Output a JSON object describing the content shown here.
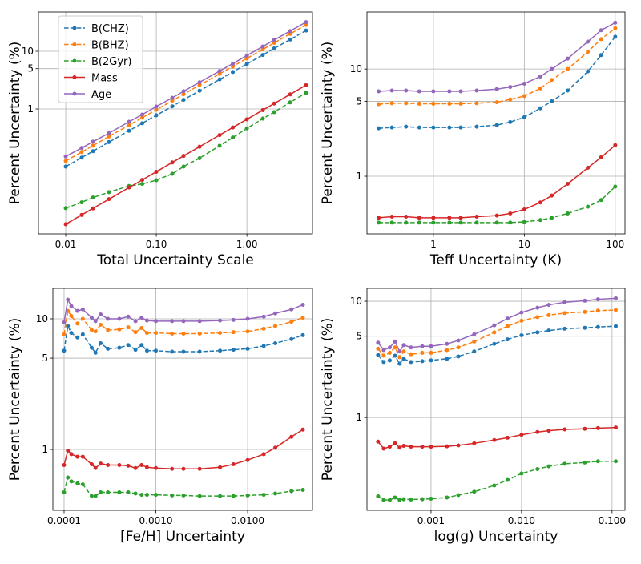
{
  "chart_data": [
    {
      "type": "line",
      "xlabel": "Total Uncertainty Scale",
      "ylabel": "Percent Uncertainty (%)",
      "xscale": "log",
      "yscale": "log",
      "grid": true,
      "legend": "upper left",
      "xlim": [
        0.005,
        5.3
      ],
      "ylim": [
        0.0068,
        48
      ],
      "xticks": [
        0.01,
        {
          "value": 0.1,
          "label": "0.10"
        },
        {
          "value": 1,
          "label": "1.00"
        }
      ],
      "yticks": [
        1,
        5,
        10
      ],
      "x": [
        0.01,
        0.015,
        0.02,
        0.03,
        0.05,
        0.07,
        0.1,
        0.15,
        0.2,
        0.3,
        0.5,
        0.7,
        1,
        1.5,
        2,
        3,
        4.5
      ],
      "series": [
        {
          "name": "B(CHZ)",
          "color": "#1f77b4",
          "linestyle": "dashed",
          "values": [
            0.1,
            0.143,
            0.185,
            0.266,
            0.419,
            0.565,
            0.776,
            1.11,
            1.44,
            2.07,
            3.25,
            4.38,
            6.03,
            8.65,
            11.2,
            16.0,
            22.9
          ]
        },
        {
          "name": "B(BHZ)",
          "color": "#ff7f0e",
          "linestyle": "dashed",
          "values": [
            0.125,
            0.179,
            0.231,
            0.333,
            0.524,
            0.706,
            0.97,
            1.39,
            1.8,
            2.59,
            4.06,
            5.48,
            7.54,
            10.8,
            14.0,
            20.0,
            28.6
          ]
        },
        {
          "name": "B(2Gyr)",
          "color": "#2ca02c",
          "linestyle": "dashed",
          "values": [
            0.019,
            0.024,
            0.029,
            0.036,
            0.046,
            0.05,
            0.058,
            0.075,
            0.1,
            0.14,
            0.23,
            0.32,
            0.46,
            0.68,
            0.88,
            1.3,
            1.9
          ]
        },
        {
          "name": "Mass",
          "color": "#d62728",
          "linestyle": "solid",
          "values": [
            0.01,
            0.0145,
            0.0188,
            0.0272,
            0.0433,
            0.0587,
            0.0813,
            0.118,
            0.153,
            0.221,
            0.352,
            0.478,
            0.661,
            0.955,
            1.24,
            1.79,
            2.59
          ]
        },
        {
          "name": "Age",
          "color": "#9467bd",
          "linestyle": "solid",
          "values": [
            0.15,
            0.21,
            0.27,
            0.38,
            0.6,
            0.8,
            1.1,
            1.56,
            2.03,
            2.9,
            4.55,
            6.13,
            8.44,
            12.1,
            15.7,
            22.4,
            32
          ]
        }
      ]
    },
    {
      "type": "line",
      "xlabel": "Teff Uncertainty (K)",
      "ylabel": "Percent Uncertainty (%)",
      "xscale": "log",
      "yscale": "log",
      "grid": true,
      "xlim": [
        0.186,
        128
      ],
      "ylim": [
        0.29,
        34
      ],
      "xticks": [
        1,
        10,
        100
      ],
      "yticks": [
        1,
        5,
        10
      ],
      "x": [
        0.25,
        0.35,
        0.5,
        0.7,
        1,
        1.5,
        2,
        3,
        5,
        7,
        10,
        15,
        20,
        30,
        50,
        70,
        100
      ],
      "series": [
        {
          "color": "#1f77b4",
          "linestyle": "dashed",
          "values": [
            2.8,
            2.85,
            2.9,
            2.85,
            2.85,
            2.85,
            2.85,
            2.9,
            3.0,
            3.2,
            3.55,
            4.3,
            5.0,
            6.3,
            9.5,
            13.5,
            20
          ]
        },
        {
          "color": "#ff7f0e",
          "linestyle": "dashed",
          "values": [
            4.7,
            4.8,
            4.8,
            4.75,
            4.75,
            4.75,
            4.75,
            4.8,
            4.9,
            5.2,
            5.6,
            6.6,
            7.9,
            10,
            14.5,
            19,
            24
          ]
        },
        {
          "color": "#2ca02c",
          "linestyle": "dashed",
          "values": [
            0.37,
            0.37,
            0.37,
            0.37,
            0.37,
            0.37,
            0.37,
            0.37,
            0.37,
            0.37,
            0.375,
            0.39,
            0.41,
            0.45,
            0.52,
            0.6,
            0.8
          ]
        },
        {
          "color": "#d62728",
          "linestyle": "solid",
          "values": [
            0.41,
            0.42,
            0.42,
            0.41,
            0.41,
            0.41,
            0.41,
            0.42,
            0.43,
            0.45,
            0.49,
            0.57,
            0.66,
            0.85,
            1.2,
            1.5,
            1.95
          ]
        },
        {
          "color": "#9467bd",
          "linestyle": "solid",
          "values": [
            6.2,
            6.3,
            6.3,
            6.2,
            6.2,
            6.2,
            6.2,
            6.3,
            6.5,
            6.8,
            7.3,
            8.5,
            10,
            12.5,
            18,
            23,
            27
          ]
        }
      ]
    },
    {
      "type": "line",
      "xlabel": "[Fe/H] Uncertainty",
      "ylabel": "Percent Uncertainty (%)",
      "xscale": "log",
      "yscale": "log",
      "grid": true,
      "xlim": [
        7.55e-05,
        0.0509
      ],
      "ylim": [
        0.342,
        17.1
      ],
      "xticks": [
        0.0001,
        {
          "value": 0.001,
          "label": "0.0010"
        },
        {
          "value": 0.01,
          "label": "0.0100"
        }
      ],
      "yticks": [
        1,
        5,
        10
      ],
      "x": [
        0.0001,
        0.00011,
        0.00012,
        0.00014,
        0.00016,
        0.0002,
        0.00022,
        0.00025,
        0.0003,
        0.0004,
        0.0005,
        0.0006,
        0.0007,
        0.0008,
        0.001,
        0.0015,
        0.002,
        0.003,
        0.005,
        0.007,
        0.01,
        0.015,
        0.02,
        0.03,
        0.04
      ],
      "series": [
        {
          "color": "#1f77b4",
          "linestyle": "dashed",
          "values": [
            5.7,
            8.8,
            7.8,
            7.2,
            7.6,
            6.0,
            5.5,
            6.5,
            5.9,
            6.0,
            6.3,
            5.8,
            6.3,
            5.7,
            5.7,
            5.6,
            5.6,
            5.6,
            5.7,
            5.8,
            5.9,
            6.2,
            6.5,
            7.0,
            7.5
          ]
        },
        {
          "color": "#ff7f0e",
          "linestyle": "dashed",
          "values": [
            7.6,
            11.5,
            10.5,
            9.2,
            10.0,
            8.2,
            8.0,
            9.0,
            8.2,
            8.3,
            8.6,
            7.9,
            8.5,
            7.8,
            7.8,
            7.7,
            7.7,
            7.7,
            7.8,
            7.9,
            8.0,
            8.4,
            8.8,
            9.5,
            10.2
          ]
        },
        {
          "color": "#2ca02c",
          "linestyle": "dashed",
          "values": [
            0.47,
            0.61,
            0.57,
            0.55,
            0.54,
            0.44,
            0.44,
            0.47,
            0.47,
            0.47,
            0.47,
            0.46,
            0.45,
            0.45,
            0.45,
            0.445,
            0.445,
            0.44,
            0.44,
            0.44,
            0.445,
            0.45,
            0.46,
            0.48,
            0.49
          ]
        },
        {
          "color": "#d62728",
          "linestyle": "solid",
          "values": [
            0.76,
            0.98,
            0.92,
            0.88,
            0.88,
            0.77,
            0.72,
            0.78,
            0.76,
            0.76,
            0.75,
            0.72,
            0.76,
            0.73,
            0.72,
            0.71,
            0.71,
            0.71,
            0.73,
            0.77,
            0.83,
            0.92,
            1.03,
            1.25,
            1.42
          ]
        },
        {
          "color": "#9467bd",
          "linestyle": "solid",
          "values": [
            9.4,
            14,
            12.5,
            11.5,
            11.8,
            10.2,
            9.6,
            10.8,
            10,
            10,
            10.4,
            9.6,
            10.2,
            9.7,
            9.6,
            9.6,
            9.6,
            9.6,
            9.7,
            9.8,
            10,
            10.4,
            11,
            11.8,
            12.8
          ]
        }
      ]
    },
    {
      "type": "line",
      "xlabel": "log(g) Uncertainty",
      "ylabel": "Percent Uncertainty (%)",
      "xscale": "log",
      "yscale": "log",
      "grid": true,
      "xlim": [
        0.000196,
        0.139
      ],
      "ylim": [
        0.159,
        12.9
      ],
      "xticks": [
        0.001,
        {
          "value": 0.01,
          "label": "0.010"
        },
        {
          "value": 0.1,
          "label": "0.100"
        }
      ],
      "yticks": [
        1,
        5,
        10
      ],
      "x": [
        0.00026,
        0.0003,
        0.00035,
        0.0004,
        0.00045,
        0.0005,
        0.0006,
        0.0008,
        0.001,
        0.0015,
        0.002,
        0.003,
        0.005,
        0.007,
        0.01,
        0.015,
        0.02,
        0.03,
        0.05,
        0.07,
        0.11
      ],
      "series": [
        {
          "color": "#1f77b4",
          "linestyle": "dashed",
          "values": [
            3.45,
            3.0,
            3.1,
            3.4,
            2.9,
            3.2,
            3.0,
            3.05,
            3.1,
            3.2,
            3.35,
            3.7,
            4.3,
            4.7,
            5.1,
            5.4,
            5.6,
            5.8,
            5.9,
            6.0,
            6.1
          ]
        },
        {
          "color": "#ff7f0e",
          "linestyle": "dashed",
          "values": [
            3.9,
            3.4,
            3.6,
            4.0,
            3.3,
            3.7,
            3.5,
            3.6,
            3.6,
            3.8,
            4.0,
            4.5,
            5.4,
            6.1,
            6.8,
            7.3,
            7.6,
            7.9,
            8.1,
            8.3,
            8.4
          ]
        },
        {
          "color": "#2ca02c",
          "linestyle": "dashed",
          "values": [
            0.21,
            0.195,
            0.195,
            0.205,
            0.195,
            0.198,
            0.197,
            0.198,
            0.2,
            0.205,
            0.215,
            0.23,
            0.26,
            0.29,
            0.33,
            0.36,
            0.38,
            0.4,
            0.41,
            0.42,
            0.42
          ]
        },
        {
          "color": "#d62728",
          "linestyle": "solid",
          "values": [
            0.62,
            0.54,
            0.56,
            0.6,
            0.55,
            0.57,
            0.56,
            0.56,
            0.56,
            0.565,
            0.575,
            0.6,
            0.64,
            0.67,
            0.71,
            0.75,
            0.77,
            0.79,
            0.8,
            0.81,
            0.82
          ]
        },
        {
          "color": "#9467bd",
          "linestyle": "solid",
          "values": [
            4.4,
            3.8,
            4.0,
            4.5,
            3.7,
            4.2,
            4.0,
            4.1,
            4.1,
            4.3,
            4.6,
            5.2,
            6.2,
            7.1,
            8.0,
            8.8,
            9.3,
            9.8,
            10.1,
            10.4,
            10.6
          ]
        }
      ]
    }
  ]
}
